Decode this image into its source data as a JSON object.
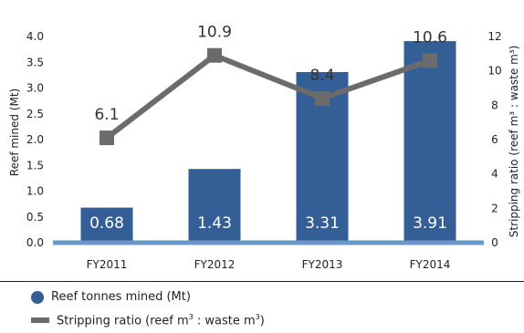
{
  "colors": {
    "bar": "#345f96",
    "line": "#6b6b6b",
    "baseline": "#6b97c8",
    "text": "#222222"
  },
  "legend": {
    "bar_label": "Reef tonnes mined (Mt)",
    "line_label_pre": "Stripping ratio (reef m",
    "line_label_sup1": "3",
    "line_label_mid": " :  waste m",
    "line_label_sup2": "3",
    "line_label_post": ")"
  },
  "chart_data": {
    "type": "bar",
    "categories": [
      "FY2011",
      "FY2012",
      "FY2013",
      "FY2014"
    ],
    "series": [
      {
        "name": "Reef tonnes mined (Mt)",
        "type": "bar",
        "axis": "left",
        "values": [
          0.68,
          1.43,
          3.31,
          3.91
        ],
        "labels": [
          "0.68",
          "1.43",
          "3.31",
          "3.91"
        ]
      },
      {
        "name": "Stripping ratio (reef m3 : waste m3)",
        "type": "line",
        "axis": "right",
        "values": [
          6.1,
          10.9,
          8.4,
          10.6
        ],
        "labels": [
          "6.1",
          "10.9",
          "8.4",
          "10.6"
        ]
      }
    ],
    "ylabel": "Reef mined (Mt)",
    "ylim": [
      0,
      4.0
    ],
    "yticks": [
      "0.0",
      "0.5",
      "1.0",
      "1.5",
      "2.0",
      "2.5",
      "3.0",
      "3.5",
      "4.0"
    ],
    "y2label": "Stripping ratio (reef m³ : waste m³)",
    "y2lim": [
      0,
      12
    ],
    "y2ticks": [
      "0",
      "2",
      "4",
      "6",
      "8",
      "10",
      "12"
    ],
    "grid": false,
    "legend_position": "bottom"
  }
}
